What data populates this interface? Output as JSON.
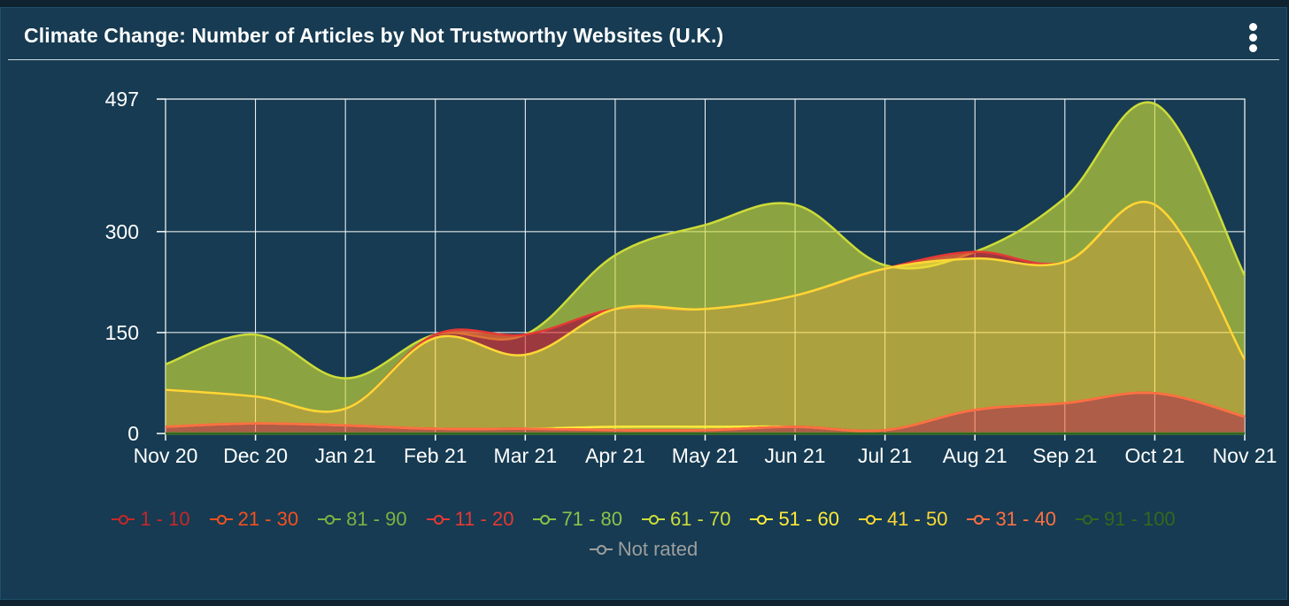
{
  "panel": {
    "title": "Climate Change: Number of Articles by Not Trustworthy Websites (U.K.)",
    "menu_icon": "kebab-menu-icon"
  },
  "chart_data": {
    "type": "area",
    "categories": [
      "Nov 20",
      "Dec 20",
      "Jan 21",
      "Feb 21",
      "Mar 21",
      "Apr 21",
      "May 21",
      "Jun 21",
      "Jul 21",
      "Aug 21",
      "Sep 21",
      "Oct 21",
      "Nov 21"
    ],
    "y_ticks": [
      0,
      150,
      300,
      497
    ],
    "ylim": [
      0,
      497
    ],
    "grid": true,
    "legend_position": "bottom",
    "series": [
      {
        "name": "1 - 10",
        "color": "#c62828",
        "values": [
          0,
          0,
          0,
          0,
          0,
          0,
          0,
          0,
          0,
          0,
          0,
          0,
          0
        ]
      },
      {
        "name": "21 - 30",
        "color": "#f4511e",
        "values": [
          0,
          0,
          0,
          0,
          0,
          0,
          0,
          0,
          0,
          0,
          0,
          0,
          0
        ]
      },
      {
        "name": "81 - 90",
        "color": "#7cb342",
        "values": [
          0,
          0,
          0,
          0,
          0,
          0,
          0,
          0,
          0,
          0,
          0,
          0,
          0
        ]
      },
      {
        "name": "11 - 20",
        "color": "#e53935",
        "values": [
          0,
          0,
          0,
          5,
          30,
          0,
          0,
          0,
          0,
          10,
          0,
          0,
          0
        ]
      },
      {
        "name": "71 - 80",
        "color": "#8bc34a",
        "values": [
          0,
          0,
          0,
          0,
          0,
          0,
          0,
          0,
          0,
          0,
          0,
          0,
          0
        ]
      },
      {
        "name": "61 - 70",
        "color": "#cddc39",
        "values": [
          38,
          92,
          45,
          0,
          0,
          80,
          125,
          135,
          5,
          0,
          95,
          150,
          125
        ]
      },
      {
        "name": "51 - 60",
        "color": "#ffeb3b",
        "values": [
          0,
          0,
          0,
          0,
          0,
          5,
          5,
          0,
          0,
          0,
          0,
          0,
          0
        ]
      },
      {
        "name": "41 - 50",
        "color": "#fdd835",
        "values": [
          55,
          40,
          25,
          135,
          110,
          175,
          175,
          195,
          240,
          225,
          210,
          280,
          85
        ]
      },
      {
        "name": "31 - 40",
        "color": "#ff7043",
        "values": [
          10,
          15,
          12,
          7,
          7,
          5,
          5,
          10,
          5,
          35,
          45,
          60,
          25
        ]
      },
      {
        "name": "91 - 100",
        "color": "#33691e",
        "values": [
          0,
          0,
          0,
          0,
          0,
          0,
          0,
          0,
          0,
          0,
          0,
          0,
          0
        ]
      },
      {
        "name": "Not rated",
        "color": "#9e9e9e",
        "values": [
          0,
          0,
          0,
          0,
          0,
          0,
          0,
          0,
          0,
          0,
          0,
          0,
          0
        ]
      }
    ]
  }
}
